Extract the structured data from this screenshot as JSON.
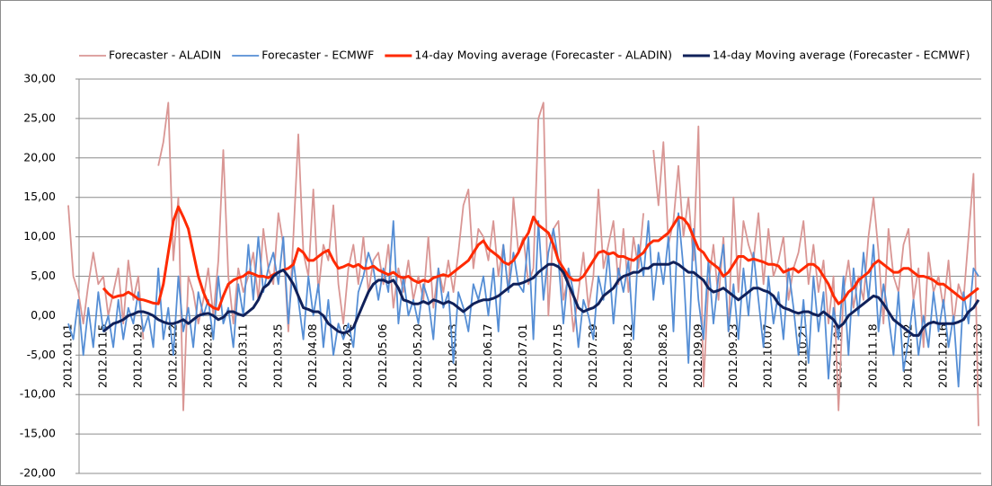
{
  "chart_data": {
    "type": "line",
    "categories": [
      "2012.01.01",
      null,
      null,
      null,
      null,
      null,
      null,
      "2012.01.15",
      null,
      null,
      null,
      null,
      null,
      null,
      "2012.01.29",
      null,
      null,
      null,
      null,
      null,
      null,
      "2012.02.12",
      null,
      null,
      null,
      null,
      null,
      null,
      "2012.02.26",
      null,
      null,
      null,
      null,
      null,
      null,
      "2012.03.11",
      null,
      null,
      null,
      null,
      null,
      null,
      "2012.03.25",
      null,
      null,
      null,
      null,
      null,
      null,
      "2012.04.08",
      null,
      null,
      null,
      null,
      null,
      null,
      "2012.04.22",
      null,
      null,
      null,
      null,
      null,
      null,
      "2012.05.06",
      null,
      null,
      null,
      null,
      null,
      null,
      "2012.05.20",
      null,
      null,
      null,
      null,
      null,
      null,
      "2012.06.03",
      null,
      null,
      null,
      null,
      null,
      null,
      "2012.06.17",
      null,
      null,
      null,
      null,
      null,
      null,
      "2012.07.01",
      null,
      null,
      null,
      null,
      null,
      null,
      "2012.07.15",
      null,
      null,
      null,
      null,
      null,
      null,
      "2012.07.29",
      null,
      null,
      null,
      null,
      null,
      null,
      "2012.08.12",
      null,
      null,
      null,
      null,
      null,
      null,
      "2012.08.26",
      null,
      null,
      null,
      null,
      null,
      null,
      "2012.09.09",
      null,
      null,
      null,
      null,
      null,
      null,
      "2012.09.23",
      null,
      null,
      null,
      null,
      null,
      null,
      "2012.10.07",
      null,
      null,
      null,
      null,
      null,
      null,
      "2012.10.21",
      null,
      null,
      null,
      null,
      null,
      null,
      "2012.11.04",
      null,
      null,
      null,
      null,
      null,
      null,
      "2012.11.18",
      null,
      null,
      null,
      null,
      null,
      null,
      "2012.12.02",
      null,
      null,
      null,
      null,
      null,
      null,
      "2012.12.16",
      null,
      null,
      null,
      null,
      null,
      null,
      "2012.12.30"
    ],
    "series": [
      {
        "name": "Forecaster - ALADIN",
        "color": "#d99694",
        "values": [
          14,
          5,
          3,
          -1,
          4,
          8,
          4,
          5,
          0,
          3,
          6,
          -1,
          7,
          2,
          5,
          -3,
          null,
          null,
          19,
          22,
          27,
          7,
          15,
          -12,
          5,
          3,
          -1,
          2,
          6,
          0,
          7,
          21,
          5,
          -1,
          6,
          3,
          5,
          8,
          2,
          11,
          6,
          4,
          13,
          9,
          -2,
          10,
          23,
          8,
          5,
          16,
          3,
          9,
          7,
          14,
          4,
          -1,
          6,
          9,
          4,
          10,
          3,
          7,
          8,
          4,
          9,
          1,
          6,
          3,
          7,
          2,
          5,
          2,
          10,
          1,
          6,
          3,
          7,
          3,
          8,
          14,
          16,
          6,
          11,
          10,
          7,
          12,
          5,
          9,
          3,
          15,
          8,
          10,
          4,
          6,
          25,
          27,
          0,
          11,
          12,
          2,
          5,
          -2,
          3,
          8,
          1,
          5,
          16,
          6,
          9,
          12,
          4,
          11,
          3,
          10,
          6,
          13,
          null,
          21,
          14,
          22,
          9,
          12,
          19,
          10,
          15,
          7,
          24,
          -9,
          4,
          9,
          2,
          10,
          -2,
          15,
          3,
          12,
          9,
          7,
          13,
          4,
          11,
          5,
          7,
          10,
          2,
          6,
          8,
          12,
          4,
          9,
          3,
          7,
          -1,
          5,
          -12,
          3,
          7,
          1,
          5,
          2,
          10,
          15,
          8,
          -1,
          11,
          5,
          3,
          9,
          11,
          2,
          6,
          -4,
          8,
          3,
          5,
          1,
          7,
          -1,
          4,
          2,
          10,
          18,
          -14
        ]
      },
      {
        "name": "Forecaster - ECMWF",
        "color": "#558ed5",
        "values": [
          -1,
          -3,
          2,
          -5,
          1,
          -4,
          3,
          -2,
          0,
          -4,
          2,
          -3,
          1,
          -1,
          3,
          -2,
          0,
          -4,
          6,
          -3,
          1,
          -5,
          5,
          -2,
          1,
          -4,
          3,
          0,
          2,
          -3,
          5,
          -1,
          1,
          -4,
          4,
          0,
          9,
          2,
          10,
          3,
          6,
          8,
          4,
          10,
          -1,
          7,
          2,
          -3,
          5,
          0,
          4,
          -4,
          2,
          -5,
          -1,
          -3,
          -1,
          -4,
          3,
          5,
          8,
          6,
          2,
          6,
          3,
          12,
          -1,
          5,
          0,
          2,
          -1,
          4,
          2,
          -3,
          6,
          1,
          3,
          -6,
          3,
          1,
          -2,
          4,
          2,
          5,
          0,
          6,
          -2,
          9,
          3,
          8,
          4,
          3,
          10,
          -3,
          12,
          2,
          8,
          11,
          7,
          -1,
          6,
          3,
          -4,
          2,
          0,
          -3,
          5,
          2,
          8,
          -1,
          6,
          3,
          7,
          -3,
          9,
          5,
          12,
          2,
          8,
          4,
          10,
          -2,
          13,
          6,
          -6,
          11,
          2,
          -3,
          7,
          -1,
          5,
          9,
          -2,
          4,
          -3,
          6,
          0,
          8,
          2,
          -4,
          5,
          -1,
          3,
          -3,
          6,
          1,
          -5,
          2,
          -6,
          5,
          -2,
          3,
          -8,
          1,
          -3,
          5,
          -5,
          6,
          0,
          8,
          2,
          9,
          -2,
          4,
          0,
          -5,
          3,
          -7,
          -3,
          2,
          -5,
          0,
          -4,
          3,
          -2,
          2,
          -4,
          0,
          -9,
          3,
          -1,
          6,
          5
        ]
      },
      {
        "name": "14-day Moving average (Forecaster - ALADIN)",
        "color": "#ff2a00",
        "values": [
          null,
          null,
          null,
          null,
          null,
          null,
          null,
          3.5,
          2.8,
          2.3,
          2.5,
          2.6,
          3,
          2.6,
          2.1,
          2,
          1.8,
          1.6,
          1.5,
          4,
          8,
          12,
          13.8,
          12.5,
          11,
          8,
          5,
          3,
          1.5,
          1,
          0.8,
          2.5,
          4,
          4.5,
          4.8,
          5,
          5.5,
          5.3,
          5,
          5,
          4.8,
          5.2,
          5.5,
          5.8,
          6,
          6.5,
          8.5,
          8,
          7,
          7,
          7.5,
          8,
          8.3,
          7,
          6,
          6.2,
          6.5,
          6.2,
          6.5,
          6,
          6,
          6.3,
          5.8,
          5.5,
          5.2,
          5.5,
          5,
          4.8,
          5,
          4.5,
          4.2,
          4.5,
          4.3,
          4.8,
          5,
          5.2,
          5,
          5.5,
          6,
          6.5,
          7,
          8,
          9,
          9.5,
          8.5,
          8,
          7.5,
          6.8,
          6.5,
          7,
          8,
          9.5,
          10.5,
          12.5,
          11.5,
          11,
          10.5,
          9,
          7,
          6,
          5,
          4.5,
          4.5,
          5,
          6,
          7,
          8,
          8.2,
          7.8,
          8,
          7.5,
          7.5,
          7.2,
          7,
          7.5,
          8,
          9,
          9.5,
          9.5,
          10,
          10.5,
          11.5,
          12.5,
          12.3,
          11.5,
          10,
          8.5,
          8,
          7,
          6.5,
          6,
          5,
          5.5,
          6.5,
          7.5,
          7.5,
          7,
          7.2,
          7,
          6.8,
          6.5,
          6.5,
          6.3,
          5.5,
          5.8,
          6,
          5.5,
          6,
          6.5,
          6.5,
          6,
          5,
          4,
          2.5,
          1.5,
          2,
          3,
          3.5,
          4.5,
          5,
          5.5,
          6.5,
          7,
          6.5,
          6,
          5.5,
          5.5,
          6,
          6,
          5.5,
          5,
          5,
          4.8,
          4.5,
          4,
          4,
          3.5,
          3,
          2.5,
          2,
          2.5,
          3,
          3.5
        ]
      },
      {
        "name": "14-day Moving average (Forecaster - ECMWF)",
        "color": "#10215a",
        "values": [
          null,
          null,
          null,
          null,
          null,
          null,
          null,
          -2,
          -1.5,
          -1,
          -0.8,
          -0.5,
          0,
          0.2,
          0.5,
          0.5,
          0.3,
          0,
          -0.5,
          -0.8,
          -1,
          -1,
          -0.8,
          -0.5,
          -1,
          -0.5,
          0,
          0.2,
          0.3,
          0,
          -0.5,
          -0.2,
          0.5,
          0.5,
          0.2,
          0,
          0.5,
          1,
          2,
          3.5,
          4,
          5,
          5.5,
          5.8,
          5,
          4,
          2.5,
          1,
          0.8,
          0.5,
          0.5,
          0,
          -1,
          -1.5,
          -2,
          -2.2,
          -2,
          -1.5,
          0,
          1.5,
          3,
          4,
          4.5,
          4.5,
          4.2,
          4.5,
          3.5,
          2,
          1.8,
          1.5,
          1.5,
          1.8,
          1.5,
          2,
          1.8,
          1.5,
          1.8,
          1.5,
          1,
          0.5,
          1,
          1.5,
          1.8,
          2,
          2,
          2.2,
          2.5,
          3,
          3.5,
          4,
          4,
          4.2,
          4.5,
          4.8,
          5.5,
          6,
          6.5,
          6.5,
          6.2,
          5.5,
          4,
          2.5,
          1,
          0.5,
          0.8,
          1,
          1.5,
          2.5,
          3,
          3.5,
          4.5,
          5,
          5.2,
          5.5,
          5.5,
          6,
          6,
          6.5,
          6.5,
          6.5,
          6.5,
          6.8,
          6.5,
          6,
          5.5,
          5.5,
          5,
          4.5,
          3.5,
          3,
          3.2,
          3.5,
          3,
          2.5,
          2,
          2.5,
          3,
          3.5,
          3.5,
          3.2,
          3,
          2.5,
          1.5,
          1,
          0.8,
          0.5,
          0.3,
          0.5,
          0.5,
          0.2,
          0,
          0.5,
          0,
          -0.5,
          -1.5,
          -1,
          0,
          0.5,
          1,
          1.5,
          2,
          2.5,
          2.3,
          1.5,
          0.5,
          -0.5,
          -1,
          -1.5,
          -2,
          -2.5,
          -2.5,
          -1.5,
          -1,
          -0.8,
          -1,
          -1,
          -1,
          -1,
          -0.8,
          -0.5,
          0.5,
          1,
          2
        ]
      }
    ],
    "ylim": [
      -20,
      30
    ],
    "yticks": [
      {
        "value": -20,
        "label": "-20,00"
      },
      {
        "value": -15,
        "label": "-15,00"
      },
      {
        "value": -10,
        "label": "-10,00"
      },
      {
        "value": -5,
        "label": "-5,00"
      },
      {
        "value": 0,
        "label": "0,00"
      },
      {
        "value": 5,
        "label": "5,00"
      },
      {
        "value": 10,
        "label": "10,00"
      },
      {
        "value": 15,
        "label": "15,00"
      },
      {
        "value": 20,
        "label": "20,00"
      },
      {
        "value": 25,
        "label": "25,00"
      },
      {
        "value": 30,
        "label": "30,00"
      }
    ],
    "grid": true,
    "legend": "top"
  }
}
